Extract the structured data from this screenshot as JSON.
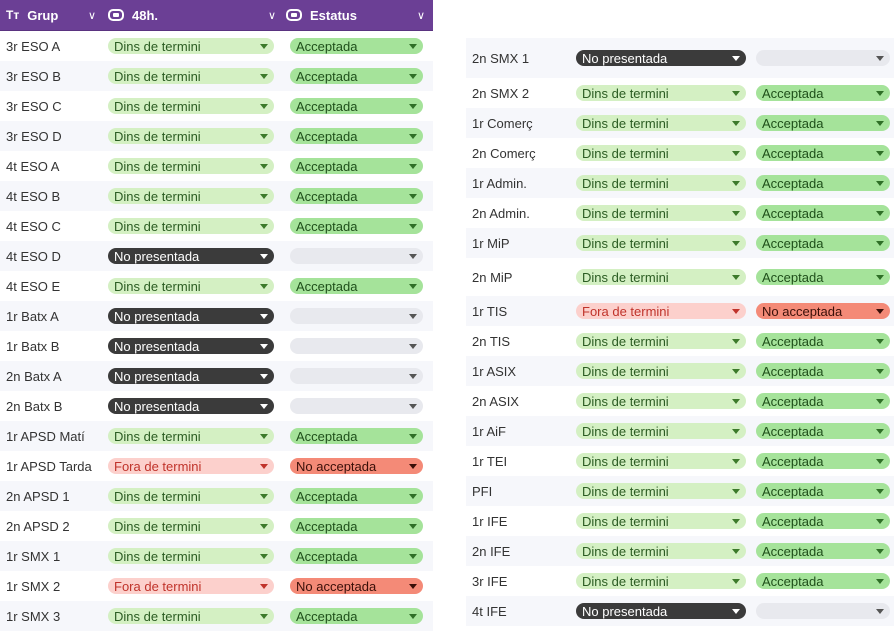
{
  "header": {
    "col_group": "Grup",
    "col_48h": "48h.",
    "col_status": "Estatus",
    "group_icon": "Tт"
  },
  "left_rows": [
    {
      "group": "3r ESO A",
      "h48": "Dins de termini",
      "h48_type": "dins",
      "status": "Acceptada",
      "status_type": "acc"
    },
    {
      "group": "3r ESO B",
      "h48": "Dins de termini",
      "h48_type": "dins",
      "status": "Acceptada",
      "status_type": "acc"
    },
    {
      "group": "3r ESO C",
      "h48": "Dins de termini",
      "h48_type": "dins",
      "status": "Acceptada",
      "status_type": "acc"
    },
    {
      "group": "3r ESO D",
      "h48": "Dins de termini",
      "h48_type": "dins",
      "status": "Acceptada",
      "status_type": "acc"
    },
    {
      "group": "4t ESO A",
      "h48": "Dins de termini",
      "h48_type": "dins",
      "status": "Acceptada",
      "status_type": "acc"
    },
    {
      "group": "4t ESO B",
      "h48": "Dins de termini",
      "h48_type": "dins",
      "status": "Acceptada",
      "status_type": "acc"
    },
    {
      "group": "4t ESO C",
      "h48": "Dins de termini",
      "h48_type": "dins",
      "status": "Acceptada",
      "status_type": "acc"
    },
    {
      "group": "4t ESO D",
      "h48": "No presentada",
      "h48_type": "nop",
      "status": "",
      "status_type": "empty"
    },
    {
      "group": "4t ESO E",
      "h48": "Dins de termini",
      "h48_type": "dins",
      "status": "Acceptada",
      "status_type": "acc"
    },
    {
      "group": "1r Batx A",
      "h48": "No presentada",
      "h48_type": "nop",
      "status": "",
      "status_type": "empty"
    },
    {
      "group": "1r Batx B",
      "h48": "No presentada",
      "h48_type": "nop",
      "status": "",
      "status_type": "empty"
    },
    {
      "group": "2n Batx A",
      "h48": "No presentada",
      "h48_type": "nop",
      "status": "",
      "status_type": "empty"
    },
    {
      "group": "2n Batx B",
      "h48": "No presentada",
      "h48_type": "nop",
      "status": "",
      "status_type": "empty"
    },
    {
      "group": "1r APSD Matí",
      "h48": "Dins de termini",
      "h48_type": "dins",
      "status": "Acceptada",
      "status_type": "acc"
    },
    {
      "group": "1r APSD Tarda",
      "h48": "Fora de termini",
      "h48_type": "fora",
      "status": "No acceptada",
      "status_type": "noacc"
    },
    {
      "group": "2n APSD 1",
      "h48": "Dins de termini",
      "h48_type": "dins",
      "status": "Acceptada",
      "status_type": "acc"
    },
    {
      "group": "2n APSD 2",
      "h48": "Dins de termini",
      "h48_type": "dins",
      "status": "Acceptada",
      "status_type": "acc"
    },
    {
      "group": "1r SMX 1",
      "h48": "Dins de termini",
      "h48_type": "dins",
      "status": "Acceptada",
      "status_type": "acc"
    },
    {
      "group": "1r SMX 2",
      "h48": "Fora de termini",
      "h48_type": "fora",
      "status": "No acceptada",
      "status_type": "noacc"
    },
    {
      "group": "1r SMX 3",
      "h48": "Dins de termini",
      "h48_type": "dins",
      "status": "Acceptada",
      "status_type": "acc"
    }
  ],
  "right_rows": [
    {
      "group": "2n SMX 1",
      "h48": "No presentada",
      "h48_type": "nop",
      "status": "",
      "status_type": "empty"
    },
    {
      "group": "2n SMX 2",
      "h48": "Dins de termini",
      "h48_type": "dins",
      "status": "Acceptada",
      "status_type": "acc"
    },
    {
      "group": "1r Comerç",
      "h48": "Dins de termini",
      "h48_type": "dins",
      "status": "Acceptada",
      "status_type": "acc"
    },
    {
      "group": "2n Comerç",
      "h48": "Dins de termini",
      "h48_type": "dins",
      "status": "Acceptada",
      "status_type": "acc"
    },
    {
      "group": "1r Admin.",
      "h48": "Dins de termini",
      "h48_type": "dins",
      "status": "Acceptada",
      "status_type": "acc"
    },
    {
      "group": "2n Admin.",
      "h48": "Dins de termini",
      "h48_type": "dins",
      "status": "Acceptada",
      "status_type": "acc"
    },
    {
      "group": "1r MiP",
      "h48": "Dins de termini",
      "h48_type": "dins",
      "status": "Acceptada",
      "status_type": "acc"
    },
    {
      "group": "2n MiP",
      "h48": "Dins de termini",
      "h48_type": "dins",
      "status": "Acceptada",
      "status_type": "acc",
      "tall": true
    },
    {
      "group": "1r TIS",
      "h48": "Fora de termini",
      "h48_type": "fora",
      "status": "No acceptada",
      "status_type": "noacc"
    },
    {
      "group": "2n TIS",
      "h48": "Dins de termini",
      "h48_type": "dins",
      "status": "Acceptada",
      "status_type": "acc"
    },
    {
      "group": "1r ASIX",
      "h48": "Dins de termini",
      "h48_type": "dins",
      "status": "Acceptada",
      "status_type": "acc"
    },
    {
      "group": "2n ASIX",
      "h48": "Dins de termini",
      "h48_type": "dins",
      "status": "Acceptada",
      "status_type": "acc"
    },
    {
      "group": "1r AiF",
      "h48": "Dins de termini",
      "h48_type": "dins",
      "status": "Acceptada",
      "status_type": "acc"
    },
    {
      "group": "1r TEI",
      "h48": "Dins de termini",
      "h48_type": "dins",
      "status": "Acceptada",
      "status_type": "acc"
    },
    {
      "group": "PFI",
      "h48": "Dins de termini",
      "h48_type": "dins",
      "status": "Acceptada",
      "status_type": "acc"
    },
    {
      "group": "1r IFE",
      "h48": "Dins de termini",
      "h48_type": "dins",
      "status": "Acceptada",
      "status_type": "acc"
    },
    {
      "group": "2n IFE",
      "h48": "Dins de termini",
      "h48_type": "dins",
      "status": "Acceptada",
      "status_type": "acc"
    },
    {
      "group": "3r IFE",
      "h48": "Dins de termini",
      "h48_type": "dins",
      "status": "Acceptada",
      "status_type": "acc"
    },
    {
      "group": "4t IFE",
      "h48": "No presentada",
      "h48_type": "nop",
      "status": "",
      "status_type": "empty"
    }
  ],
  "colors": {
    "header_bg": "#6b3f95",
    "dins_bg": "#d4f0c3",
    "fora_bg": "#fcd0cc",
    "nop_bg": "#3b3b3b",
    "acc_bg": "#a5e39a",
    "noacc_bg": "#f48a77",
    "empty_bg": "#e8e9ee"
  },
  "icons": {
    "group_col": "text-type-icon",
    "link_col": "link-icon",
    "sort": "chevron-down-icon"
  }
}
